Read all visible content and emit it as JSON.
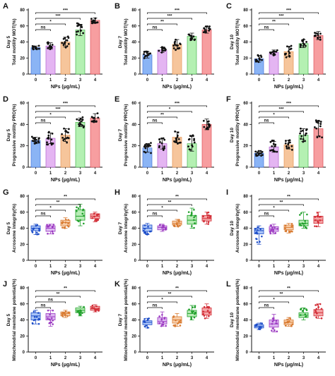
{
  "x_label": "NPs (μg/mL)",
  "chart_data": [
    {
      "panel": "A",
      "type": "bar",
      "ylabel_day": "Day 5",
      "ylabel": "Total motility MOT(%)",
      "ylim": [
        0,
        80
      ],
      "yticks": [
        0,
        20,
        40,
        60,
        80
      ],
      "categories": [
        "0",
        "1",
        "2",
        "3",
        "4"
      ],
      "values": [
        33,
        35,
        40,
        55,
        67
      ],
      "errors": [
        2,
        4,
        6,
        7,
        3
      ],
      "significance": [
        "ns",
        "*",
        "***",
        "***"
      ]
    },
    {
      "panel": "B",
      "type": "bar",
      "ylabel_day": "Day 7",
      "ylabel": "Total motility MOT(%)",
      "ylim": [
        0,
        80
      ],
      "yticks": [
        0,
        20,
        40,
        60,
        80
      ],
      "categories": [
        "0",
        "1",
        "2",
        "3",
        "4"
      ],
      "values": [
        24,
        30,
        37,
        47,
        55
      ],
      "errors": [
        4,
        3,
        6,
        4,
        4
      ],
      "significance": [
        "ns",
        "**",
        "***",
        "***"
      ]
    },
    {
      "panel": "C",
      "type": "bar",
      "ylabel_day": "Day 10",
      "ylabel": "Total motility MOT(%)",
      "ylim": [
        0,
        80
      ],
      "yticks": [
        0,
        20,
        40,
        60,
        80
      ],
      "categories": [
        "0",
        "1",
        "2",
        "3",
        "4"
      ],
      "values": [
        19,
        27,
        28,
        38,
        48
      ],
      "errors": [
        4,
        3,
        6,
        5,
        5
      ],
      "significance": [
        "ns",
        "**",
        "***",
        "***"
      ]
    },
    {
      "panel": "D",
      "type": "bar",
      "ylabel_day": "Day 5",
      "ylabel": "Progressive motility PRO(%)",
      "ylim": [
        0,
        60
      ],
      "yticks": [
        0,
        20,
        40,
        60
      ],
      "categories": [
        "0",
        "1",
        "2",
        "3",
        "4"
      ],
      "values": [
        25,
        27,
        30,
        42,
        46
      ],
      "errors": [
        3,
        5,
        6,
        4,
        4
      ],
      "significance": [
        "ns",
        "*",
        "***",
        "***"
      ]
    },
    {
      "panel": "E",
      "type": "bar",
      "ylabel_day": "Day 7",
      "ylabel": "Progressive motility PRO(%)",
      "ylim": [
        0,
        60
      ],
      "yticks": [
        0,
        20,
        40,
        60
      ],
      "categories": [
        "0",
        "1",
        "2",
        "3",
        "4"
      ],
      "values": [
        18,
        22,
        28,
        22,
        40
      ],
      "errors": [
        4,
        5,
        5,
        7,
        5
      ],
      "significance": [
        "ns",
        "**",
        "*",
        "***"
      ]
    },
    {
      "panel": "F",
      "type": "bar",
      "ylabel_day": "Day 10",
      "ylabel": "Progressive motility PRO(%)",
      "ylim": [
        0,
        60
      ],
      "yticks": [
        0,
        20,
        40,
        60
      ],
      "categories": [
        "0",
        "1",
        "2",
        "3",
        "4"
      ],
      "values": [
        13,
        19,
        21,
        30,
        36
      ],
      "errors": [
        2,
        5,
        4,
        6,
        7
      ],
      "significance": [
        "ns",
        "*",
        "***",
        "***"
      ]
    },
    {
      "panel": "G",
      "type": "box",
      "ylabel_day": "Day 5",
      "ylabel": "Acrosome integrity(%)",
      "ylim": [
        0,
        80
      ],
      "yticks": [
        0,
        20,
        40,
        60,
        80
      ],
      "categories": [
        "0",
        "1",
        "2",
        "3",
        "4"
      ],
      "boxes": [
        {
          "min": 32,
          "q1": 37,
          "med": 40,
          "q3": 43,
          "max": 45
        },
        {
          "min": 33,
          "q1": 36,
          "med": 40,
          "q3": 43,
          "max": 45
        },
        {
          "min": 40,
          "q1": 43,
          "med": 47,
          "q3": 50,
          "max": 53
        },
        {
          "min": 43,
          "q1": 50,
          "med": 55,
          "q3": 63,
          "max": 70
        },
        {
          "min": 48,
          "q1": 52,
          "med": 55,
          "q3": 58,
          "max": 60
        }
      ],
      "significance": [
        "ns",
        "*",
        "**",
        "**"
      ]
    },
    {
      "panel": "H",
      "type": "box",
      "ylabel_day": "Day 7",
      "ylabel": "Acrosome integrity(%)",
      "ylim": [
        0,
        80
      ],
      "yticks": [
        0,
        20,
        40,
        60,
        80
      ],
      "categories": [
        "0",
        "1",
        "2",
        "3",
        "4"
      ],
      "boxes": [
        {
          "min": 32,
          "q1": 36,
          "med": 40,
          "q3": 44,
          "max": 46
        },
        {
          "min": 36,
          "q1": 38,
          "med": 41,
          "q3": 43,
          "max": 45
        },
        {
          "min": 42,
          "q1": 44,
          "med": 46,
          "q3": 49,
          "max": 51
        },
        {
          "min": 40,
          "q1": 45,
          "med": 50,
          "q3": 56,
          "max": 65
        },
        {
          "min": 45,
          "q1": 49,
          "med": 52,
          "q3": 56,
          "max": 60
        }
      ],
      "significance": [
        "ns",
        "*",
        "**",
        "**"
      ]
    },
    {
      "panel": "I",
      "type": "box",
      "ylabel_day": "Day 10",
      "ylabel": "Acrosome integrity(%)",
      "ylim": [
        0,
        80
      ],
      "yticks": [
        0,
        20,
        40,
        60,
        80
      ],
      "categories": [
        "0",
        "1",
        "2",
        "3",
        "4"
      ],
      "boxes": [
        {
          "min": 20,
          "q1": 33,
          "med": 37,
          "q3": 40,
          "max": 43
        },
        {
          "min": 33,
          "q1": 36,
          "med": 39,
          "q3": 42,
          "max": 45
        },
        {
          "min": 34,
          "q1": 38,
          "med": 41,
          "q3": 44,
          "max": 46
        },
        {
          "min": 40,
          "q1": 43,
          "med": 46,
          "q3": 50,
          "max": 60
        },
        {
          "min": 42,
          "q1": 46,
          "med": 50,
          "q3": 55,
          "max": 60
        }
      ],
      "significance": [
        "ns",
        "*",
        "**",
        "**"
      ]
    },
    {
      "panel": "J",
      "type": "box",
      "ylabel_day": "Day 5",
      "ylabel": "Mitochondrial membrane potential(%)",
      "ylim": [
        0,
        80
      ],
      "yticks": [
        0,
        20,
        40,
        60,
        80
      ],
      "categories": [
        "0",
        "1",
        "2",
        "3",
        "4"
      ],
      "boxes": [
        {
          "min": 35,
          "q1": 40,
          "med": 45,
          "q3": 49,
          "max": 52
        },
        {
          "min": 32,
          "q1": 40,
          "med": 44,
          "q3": 48,
          "max": 52
        },
        {
          "min": 43,
          "q1": 45,
          "med": 48,
          "q3": 50,
          "max": 52
        },
        {
          "min": 45,
          "q1": 49,
          "med": 52,
          "q3": 55,
          "max": 57
        },
        {
          "min": 50,
          "q1": 52,
          "med": 54,
          "q3": 57,
          "max": 59
        }
      ],
      "significance": [
        "ns",
        "ns",
        "**",
        "**"
      ]
    },
    {
      "panel": "K",
      "type": "box",
      "ylabel_day": "Day 7",
      "ylabel": "Mitochondrial membrane potential(%)",
      "ylim": [
        0,
        80
      ],
      "yticks": [
        0,
        20,
        40,
        60,
        80
      ],
      "categories": [
        "0",
        "1",
        "2",
        "3",
        "4"
      ],
      "boxes": [
        {
          "min": 30,
          "q1": 34,
          "med": 37,
          "q3": 39,
          "max": 42
        },
        {
          "min": 32,
          "q1": 35,
          "med": 38,
          "q3": 43,
          "max": 50
        },
        {
          "min": 32,
          "q1": 36,
          "med": 40,
          "q3": 44,
          "max": 48
        },
        {
          "min": 40,
          "q1": 44,
          "med": 48,
          "q3": 52,
          "max": 58
        },
        {
          "min": 42,
          "q1": 46,
          "med": 50,
          "q3": 55,
          "max": 60
        }
      ],
      "significance": [
        "ns",
        "*",
        "**",
        "**"
      ]
    },
    {
      "panel": "L",
      "type": "box",
      "ylabel_day": "Day 10",
      "ylabel": "Mitochondrial membrane potential(%)",
      "ylim": [
        0,
        80
      ],
      "yticks": [
        0,
        20,
        40,
        60,
        80
      ],
      "categories": [
        "0",
        "1",
        "2",
        "3",
        "4"
      ],
      "boxes": [
        {
          "min": 28,
          "q1": 30,
          "med": 32,
          "q3": 34,
          "max": 36
        },
        {
          "min": 25,
          "q1": 31,
          "med": 35,
          "q3": 40,
          "max": 47
        },
        {
          "min": 32,
          "q1": 34,
          "med": 37,
          "q3": 40,
          "max": 43
        },
        {
          "min": 40,
          "q1": 43,
          "med": 46,
          "q3": 49,
          "max": 55
        },
        {
          "min": 42,
          "q1": 45,
          "med": 49,
          "q3": 53,
          "max": 60
        }
      ],
      "significance": [
        "ns",
        "*",
        "**",
        "**"
      ]
    }
  ],
  "palette": {
    "bar_fill": [
      "#8ab4f5",
      "#e4b5f2",
      "#f6c59b",
      "#b4f0b2",
      "#f79ea0"
    ],
    "bar_edge": [
      "#3566d6",
      "#a650c6",
      "#e08a45",
      "#35a93c",
      "#d94048"
    ],
    "box_fill": [
      "#a9c4f7",
      "#ddb8f1",
      "#f7cda8",
      "#b8ecb6",
      "#f5a5a7"
    ],
    "box_edge": [
      "#1f4fc9",
      "#9d3cc2",
      "#d97c33",
      "#22a12d",
      "#d22f38"
    ],
    "marker_bar": "#111111"
  }
}
